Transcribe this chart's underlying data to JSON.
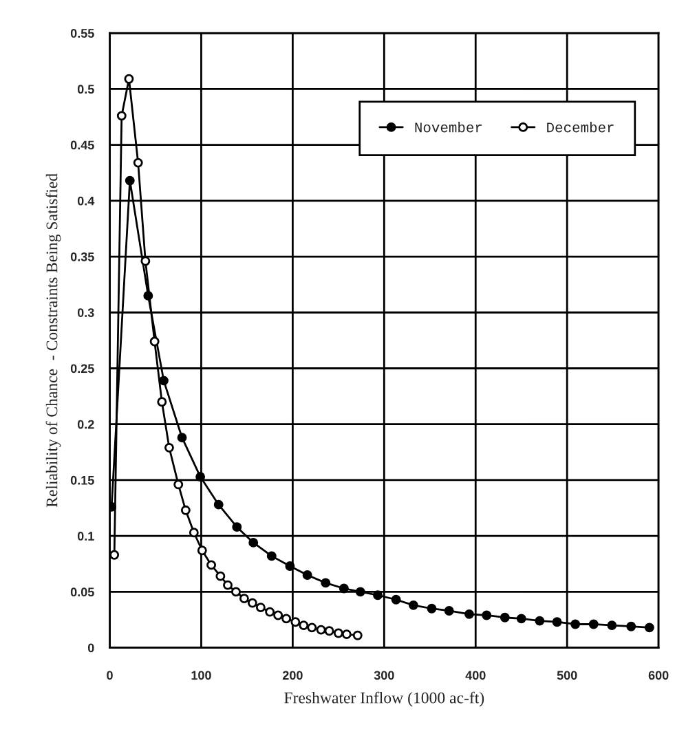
{
  "chart_data": {
    "type": "line",
    "xlabel": "Freshwater Inflow (1000 ac-ft)",
    "ylabel": "Reliability of Chance  - Constraints Being Satisfied",
    "xlim": [
      0,
      600
    ],
    "xticks": [
      0,
      100,
      200,
      300,
      400,
      500,
      600
    ],
    "ylim": [
      0,
      0.55
    ],
    "yticks": [
      0,
      0.05,
      0.1,
      0.15,
      0.2,
      0.25,
      0.3,
      0.35,
      0.4,
      0.45,
      0.5,
      0.55
    ],
    "grid": true,
    "legend": "top right",
    "line_style": "solid",
    "series": [
      {
        "name": "November",
        "color": "#000000",
        "marker": "circle",
        "x": [
          2,
          22,
          42,
          59,
          79,
          99,
          119,
          139,
          157,
          177,
          197,
          216,
          236,
          256,
          274,
          293,
          313,
          332,
          352,
          371,
          393,
          412,
          432,
          450,
          470,
          489,
          509,
          529,
          549,
          570,
          590
        ],
        "values": [
          0.126,
          0.418,
          0.315,
          0.239,
          0.188,
          0.153,
          0.128,
          0.108,
          0.094,
          0.082,
          0.073,
          0.065,
          0.058,
          0.053,
          0.05,
          0.047,
          0.043,
          0.038,
          0.035,
          0.033,
          0.03,
          0.029,
          0.027,
          0.026,
          0.024,
          0.023,
          0.021,
          0.021,
          0.02,
          0.019,
          0.018
        ]
      },
      {
        "name": "December",
        "color": "#000000",
        "marker": "circle",
        "x": [
          5,
          13,
          21,
          31,
          39,
          49,
          57,
          65,
          75,
          83,
          92,
          101,
          111,
          121,
          129,
          138,
          147,
          156,
          165,
          175,
          184,
          193,
          203,
          212,
          221,
          231,
          240,
          250,
          259,
          271
        ],
        "values": [
          0.083,
          0.476,
          0.509,
          0.434,
          0.346,
          0.274,
          0.22,
          0.179,
          0.146,
          0.123,
          0.103,
          0.087,
          0.074,
          0.064,
          0.056,
          0.05,
          0.044,
          0.04,
          0.036,
          0.032,
          0.029,
          0.026,
          0.023,
          0.02,
          0.018,
          0.016,
          0.015,
          0.013,
          0.012,
          0.011
        ]
      }
    ]
  }
}
